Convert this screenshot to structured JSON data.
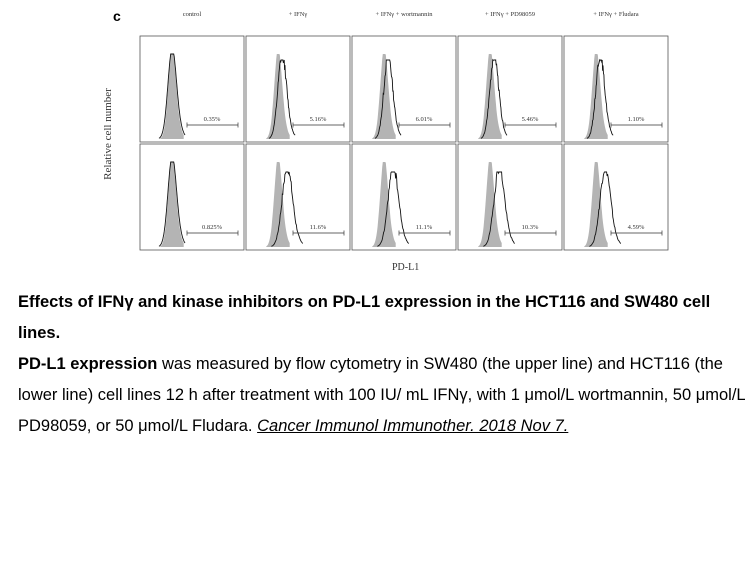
{
  "figure": {
    "panel_letter": "c",
    "y_axis_label": "Relative cell number",
    "x_axis_label": "PD-L1"
  },
  "chart_data": {
    "type": "histogram-grid",
    "title": "",
    "xlabel": "PD-L1",
    "ylabel": "Relative cell number",
    "columns": [
      "control",
      "+ IFNγ",
      "+ IFNγ + wortmannin",
      "+ IFNγ + PD98059",
      "+ IFNγ + Fludara"
    ],
    "rows": [
      {
        "name": "SW480",
        "percentages": [
          "0.35%",
          "5.16%",
          "6.01%",
          "5.46%",
          "1.10%"
        ]
      },
      {
        "name": "HCT116",
        "percentages": [
          "0.825%",
          "11.6%",
          "11.1%",
          "10.3%",
          "4.59%"
        ]
      }
    ],
    "colors": {
      "isotype_fill": "#b4b4b4",
      "stained_line": "#111111",
      "frame": "#555555"
    }
  },
  "caption": {
    "title": "Effects of IFNγ and kinase inhibitors on PD-L1 expression in the HCT116 and SW480 cell lines.",
    "body_lead": "PD-L1 expression",
    "body_rest": " was measured by flow cytometry in SW480 (the upper line) and HCT116 (the lower line) cell lines 12 h after treatment with 100 IU/ mL IFNγ, with 1 μmol/L wortmannin, 50 μmol/L PD98059, or 50 μmol/L Fludara. ",
    "citation": "Cancer Immunol Immunother. 2018 Nov 7."
  }
}
